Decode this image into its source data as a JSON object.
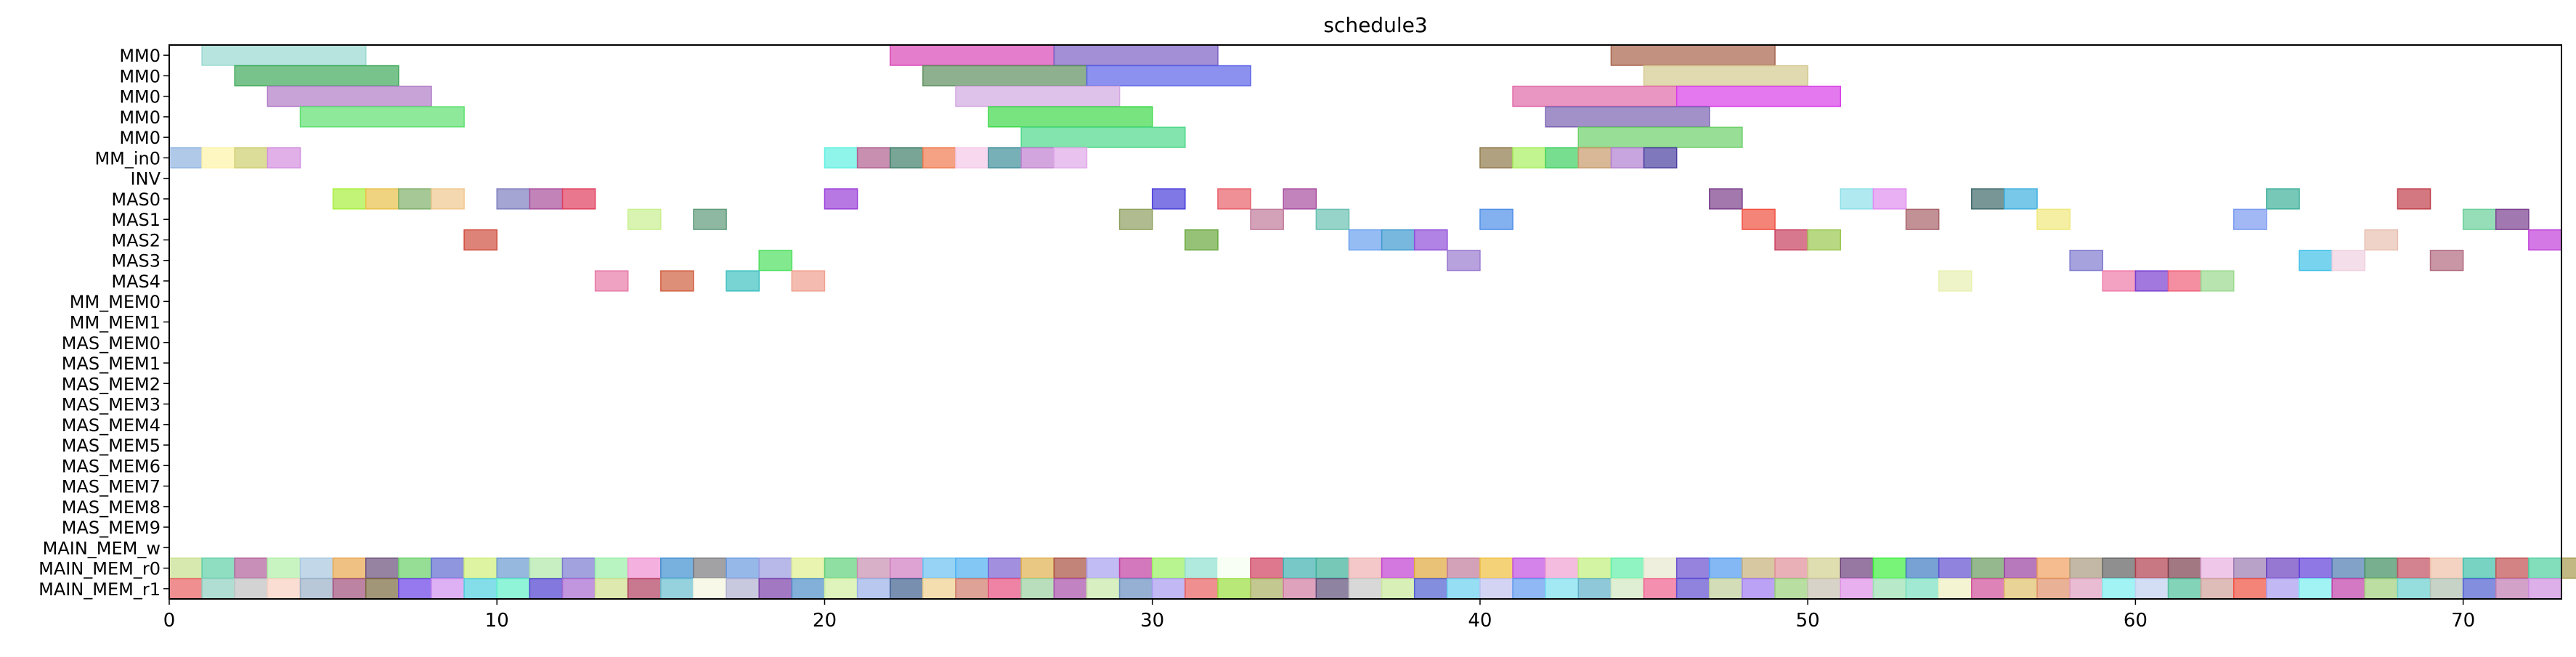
{
  "chart_data": {
    "type": "gantt",
    "title": "schedule3",
    "xlabel": "",
    "ylabel": "",
    "xlim": [
      0,
      73
    ],
    "x_ticks": [
      "0",
      "10",
      "20",
      "30",
      "40",
      "50",
      "60",
      "70"
    ],
    "grid": false,
    "rows": [
      "MM0",
      "MM0",
      "MM0",
      "MM0",
      "MM0",
      "MM_in0",
      "INV",
      "MAS0",
      "MAS1",
      "MAS2",
      "MAS3",
      "MAS4",
      "MM_MEM0",
      "MM_MEM1",
      "MAS_MEM0",
      "MAS_MEM1",
      "MAS_MEM2",
      "MAS_MEM3",
      "MAS_MEM4",
      "MAS_MEM5",
      "MAS_MEM6",
      "MAS_MEM7",
      "MAS_MEM8",
      "MAS_MEM9",
      "MAIN_MEM_w",
      "MAIN_MEM_r0",
      "MAIN_MEM_r1"
    ],
    "tasks": [
      {
        "row": 0,
        "start": 1,
        "end": 6,
        "color": "#9ad9d1"
      },
      {
        "row": 0,
        "start": 22,
        "end": 27,
        "color": "#d946b5"
      },
      {
        "row": 0,
        "start": 27,
        "end": 32,
        "color": "#7a5fc4"
      },
      {
        "row": 0,
        "start": 44,
        "end": 49,
        "color": "#a8634a"
      },
      {
        "row": 1,
        "start": 2,
        "end": 7,
        "color": "#3fa85a"
      },
      {
        "row": 1,
        "start": 23,
        "end": 28,
        "color": "#5e8f5e"
      },
      {
        "row": 1,
        "start": 28,
        "end": 33,
        "color": "#5b63e8"
      },
      {
        "row": 1,
        "start": 45,
        "end": 50,
        "color": "#d4c98f"
      },
      {
        "row": 2,
        "start": 3,
        "end": 8,
        "color": "#b07cc6"
      },
      {
        "row": 2,
        "start": 24,
        "end": 29,
        "color": "#d2a8e0"
      },
      {
        "row": 2,
        "start": 41,
        "end": 46,
        "color": "#e06aa8"
      },
      {
        "row": 2,
        "start": 46,
        "end": 51,
        "color": "#d93ee8"
      },
      {
        "row": 3,
        "start": 4,
        "end": 9,
        "color": "#5fe070"
      },
      {
        "row": 3,
        "start": 25,
        "end": 30,
        "color": "#3fd84a"
      },
      {
        "row": 3,
        "start": 42,
        "end": 47,
        "color": "#7a63b0"
      },
      {
        "row": 4,
        "start": 26,
        "end": 31,
        "color": "#4fd98a"
      },
      {
        "row": 4,
        "start": 43,
        "end": 48,
        "color": "#6ed06a"
      },
      {
        "row": 5,
        "start": 0,
        "end": 1,
        "color": "#8fb2e0"
      },
      {
        "row": 5,
        "start": 1,
        "end": 2,
        "color": "#fff3a8"
      },
      {
        "row": 5,
        "start": 2,
        "end": 3,
        "color": "#cfcf6f"
      },
      {
        "row": 5,
        "start": 3,
        "end": 4,
        "color": "#d48fe0"
      },
      {
        "row": 5,
        "start": 20,
        "end": 21,
        "color": "#5ff0e0"
      },
      {
        "row": 5,
        "start": 21,
        "end": 22,
        "color": "#b05f8f"
      },
      {
        "row": 5,
        "start": 22,
        "end": 23,
        "color": "#3f7f6a"
      },
      {
        "row": 5,
        "start": 23,
        "end": 24,
        "color": "#f07a4f"
      },
      {
        "row": 5,
        "start": 24,
        "end": 25,
        "color": "#f5c8e8"
      },
      {
        "row": 5,
        "start": 25,
        "end": 26,
        "color": "#3f8f9a"
      },
      {
        "row": 5,
        "start": 26,
        "end": 27,
        "color": "#c07fd0"
      },
      {
        "row": 5,
        "start": 27,
        "end": 28,
        "color": "#e0a8e8"
      },
      {
        "row": 5,
        "start": 40,
        "end": 41,
        "color": "#8f7a4a"
      },
      {
        "row": 5,
        "start": 41,
        "end": 42,
        "color": "#a8f05f"
      },
      {
        "row": 5,
        "start": 42,
        "end": 43,
        "color": "#3fd05f"
      },
      {
        "row": 5,
        "start": 43,
        "end": 44,
        "color": "#c89a6a"
      },
      {
        "row": 5,
        "start": 44,
        "end": 45,
        "color": "#b07fd0"
      },
      {
        "row": 5,
        "start": 45,
        "end": 46,
        "color": "#4a3fa0"
      },
      {
        "row": 7,
        "start": 5,
        "end": 6,
        "color": "#a8f03f"
      },
      {
        "row": 7,
        "start": 6,
        "end": 7,
        "color": "#e8c04a"
      },
      {
        "row": 7,
        "start": 7,
        "end": 8,
        "color": "#7fb06a"
      },
      {
        "row": 7,
        "start": 8,
        "end": 9,
        "color": "#f0c88f"
      },
      {
        "row": 7,
        "start": 10,
        "end": 11,
        "color": "#7f7fc0"
      },
      {
        "row": 7,
        "start": 11,
        "end": 12,
        "color": "#a84f9a"
      },
      {
        "row": 7,
        "start": 12,
        "end": 13,
        "color": "#e03f5f"
      },
      {
        "row": 7,
        "start": 20,
        "end": 21,
        "color": "#9a3fd9"
      },
      {
        "row": 7,
        "start": 30,
        "end": 31,
        "color": "#4a3fd9"
      },
      {
        "row": 7,
        "start": 32,
        "end": 33,
        "color": "#e85f6a"
      },
      {
        "row": 7,
        "start": 34,
        "end": 35,
        "color": "#a84fa0"
      },
      {
        "row": 7,
        "start": 47,
        "end": 48,
        "color": "#7a3f8a"
      },
      {
        "row": 7,
        "start": 51,
        "end": 52,
        "color": "#8fe0e8"
      },
      {
        "row": 7,
        "start": 52,
        "end": 53,
        "color": "#e08ff0"
      },
      {
        "row": 7,
        "start": 55,
        "end": 56,
        "color": "#3f6a6a"
      },
      {
        "row": 7,
        "start": 56,
        "end": 57,
        "color": "#3fb0e0"
      },
      {
        "row": 7,
        "start": 64,
        "end": 65,
        "color": "#3fb09a"
      },
      {
        "row": 7,
        "start": 68,
        "end": 69,
        "color": "#c03f4a"
      },
      {
        "row": 8,
        "start": 14,
        "end": 15,
        "color": "#c8f08f"
      },
      {
        "row": 8,
        "start": 16,
        "end": 17,
        "color": "#5f9a7a"
      },
      {
        "row": 8,
        "start": 29,
        "end": 30,
        "color": "#8fa05f"
      },
      {
        "row": 8,
        "start": 33,
        "end": 34,
        "color": "#c07a9a"
      },
      {
        "row": 8,
        "start": 35,
        "end": 36,
        "color": "#6ac0b0"
      },
      {
        "row": 8,
        "start": 40,
        "end": 41,
        "color": "#4f8fe8"
      },
      {
        "row": 8,
        "start": 48,
        "end": 49,
        "color": "#f04f3f"
      },
      {
        "row": 8,
        "start": 53,
        "end": 54,
        "color": "#a8636a"
      },
      {
        "row": 8,
        "start": 57,
        "end": 58,
        "color": "#f0e87a"
      },
      {
        "row": 8,
        "start": 63,
        "end": 64,
        "color": "#7a9af0"
      },
      {
        "row": 8,
        "start": 70,
        "end": 71,
        "color": "#6ad09a"
      },
      {
        "row": 8,
        "start": 71,
        "end": 72,
        "color": "#7a3f8f"
      },
      {
        "row": 9,
        "start": 9,
        "end": 10,
        "color": "#d04f3f"
      },
      {
        "row": 9,
        "start": 31,
        "end": 32,
        "color": "#6aa83f"
      },
      {
        "row": 9,
        "start": 36,
        "end": 37,
        "color": "#6aa0f0"
      },
      {
        "row": 9,
        "start": 37,
        "end": 38,
        "color": "#3f9ad0"
      },
      {
        "row": 9,
        "start": 38,
        "end": 39,
        "color": "#8f4fd9"
      },
      {
        "row": 9,
        "start": 49,
        "end": 50,
        "color": "#c83f5f"
      },
      {
        "row": 9,
        "start": 50,
        "end": 51,
        "color": "#9ac84f"
      },
      {
        "row": 9,
        "start": 67,
        "end": 68,
        "color": "#e8c0b0"
      },
      {
        "row": 9,
        "start": 72,
        "end": 73,
        "color": "#c03fd9"
      },
      {
        "row": 10,
        "start": 18,
        "end": 19,
        "color": "#4fe05f"
      },
      {
        "row": 10,
        "start": 39,
        "end": 40,
        "color": "#9a7ad0"
      },
      {
        "row": 10,
        "start": 58,
        "end": 59,
        "color": "#7f7ad0"
      },
      {
        "row": 10,
        "start": 65,
        "end": 66,
        "color": "#3fc0e8"
      },
      {
        "row": 10,
        "start": 66,
        "end": 67,
        "color": "#f0d0e0"
      },
      {
        "row": 10,
        "start": 69,
        "end": 70,
        "color": "#b06a7f"
      },
      {
        "row": 11,
        "start": 13,
        "end": 14,
        "color": "#e87aa8"
      },
      {
        "row": 11,
        "start": 15,
        "end": 16,
        "color": "#d05f3f"
      },
      {
        "row": 11,
        "start": 17,
        "end": 18,
        "color": "#3fc0c0"
      },
      {
        "row": 11,
        "start": 19,
        "end": 20,
        "color": "#f0a08f"
      },
      {
        "row": 11,
        "start": 54,
        "end": 55,
        "color": "#e8f0b0"
      },
      {
        "row": 11,
        "start": 59,
        "end": 60,
        "color": "#f07aa8"
      },
      {
        "row": 11,
        "start": 60,
        "end": 61,
        "color": "#7a3fd0"
      },
      {
        "row": 11,
        "start": 61,
        "end": 62,
        "color": "#f05f7a"
      },
      {
        "row": 11,
        "start": 62,
        "end": 63,
        "color": "#9ad98f"
      }
    ],
    "memory_rows": {
      "MAIN_MEM_r0": [
        "#c8e08f",
        "#5fd0a8",
        "#b05f9a",
        "#b0f0a8",
        "#a8c8e0",
        "#e8a84f",
        "#6a4f7a",
        "#6ad06a",
        "#5f6ad0",
        "#d0f07a",
        "#6a9ad0",
        "#b0e8a8",
        "#7a7ad0",
        "#9af0a8",
        "#f08fd0",
        "#3f8fd0",
        "#7a7a7f",
        "#6a9ae0",
        "#9a9ae0",
        "#e0f08f",
        "#5fd07a",
        "#c88fb0",
        "#d07ac0",
        "#6ac0f0",
        "#4fb0f0",
        "#7a5fd0",
        "#e0b04f",
        "#a84f3f",
        "#a8a0f0",
        "#c03fa0",
        "#9af05f",
        "#8fe0d0",
        "#f5fff0",
        "#d03f5f",
        "#3fb0b0",
        "#3fb09a",
        "#f0b0b0",
        "#c03fd0",
        "#e0a83f",
        "#c07a9a",
        "#f0c03f",
        "#c04fe0",
        "#f0a0d0",
        "#c0f07a",
        "#5ff0a8",
        "#e8e8d0",
        "#6a4fd0",
        "#4f9af0",
        "#c8b07a",
        "#e08f9a",
        "#d0d08f",
        "#6a3f7a",
        "#3ff03f",
        "#3f7ac0",
        "#5f4fd0",
        "#6a9a5f",
        "#9a3fa0",
        "#f0a05f",
        "#a89a7f",
        "#5f5f5f",
        "#b03f4f",
        "#7a3f4f",
        "#e8b0e0",
        "#9a7ab0",
        "#6a3fc0",
        "#5f3fd9",
        "#4f7ab0",
        "#3f8f5f",
        "#c04f5f",
        "#f0c0a8",
        "#3fc0a8",
        "#c04f4f",
        "#4fd0a0",
        "#a89a4f",
        "#9a4fd0"
      ],
      "MAIN_MEM_r1": [
        "#e85f5f",
        "#8fd0c0",
        "#c0c0c0",
        "#f8d0c0",
        "#9ab0c8",
        "#a04f7a",
        "#7a6a3f",
        "#6a3fe8",
        "#d08ff0",
        "#4fd0e0",
        "#5ff0c8",
        "#4f3fd0",
        "#a86ad0",
        "#d0e08f",
        "#b03f5f",
        "#6abfd0",
        "#f5f5e0",
        "#b0b0d0",
        "#7a3fa8",
        "#4f8fc8",
        "#d0f0a0",
        "#9ab0e8",
        "#3f5f8f",
        "#f0d08f",
        "#d07a6a",
        "#e84f7f",
        "#9ad0a0",
        "#a84fa8",
        "#c8e8a8",
        "#6a8fc0",
        "#a89af0",
        "#e85f5f",
        "#9ae03f",
        "#a8b05f",
        "#d07aa0",
        "#5f4f7a",
        "#c8c8c8",
        "#c8e89a",
        "#4f5fd0",
        "#6ad0f0",
        "#c0c0f0",
        "#5f9af0",
        "#7ae0f0",
        "#5fb0c8",
        "#d0e8c0",
        "#f05f8f",
        "#5f4fd0",
        "#c0d09a",
        "#a07af0",
        "#9ad07a",
        "#c8c0b0",
        "#e08fe8",
        "#9ae0b0",
        "#7ae0c0",
        "#f0f0c0",
        "#d04f9a",
        "#e0c06a",
        "#e0906a",
        "#e0a0c0",
        "#7af0f0",
        "#c0d0f0",
        "#4fc09a",
        "#d0a09a",
        "#f04f3f",
        "#a89af0",
        "#7af0f0",
        "#c03fa8",
        "#a0d07a",
        "#6ad0d0",
        "#b0c0b0",
        "#4f5fd0",
        "#c07ab0",
        "#d08fe0"
      ]
    }
  }
}
